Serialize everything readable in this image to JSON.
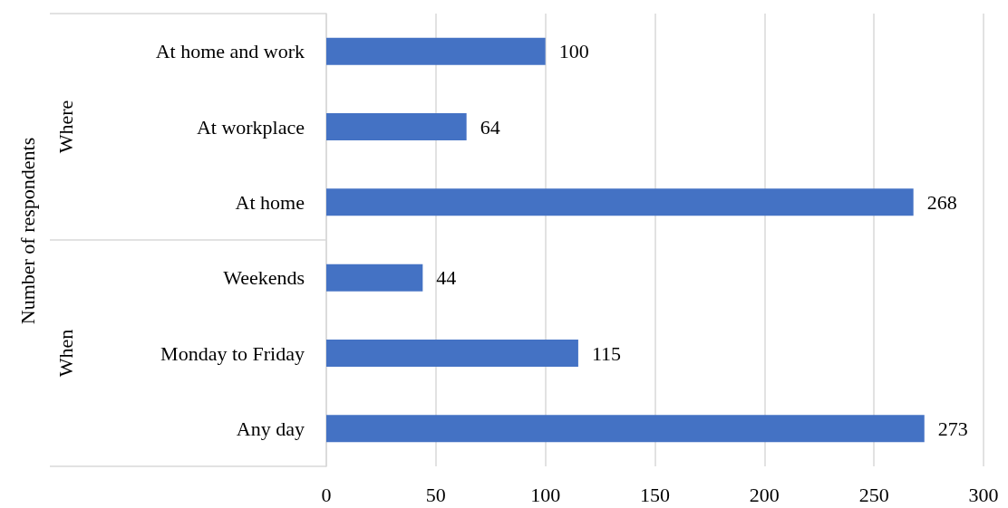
{
  "chart_data": {
    "type": "bar",
    "orientation": "horizontal",
    "categories": [
      "At home and work",
      "At workplace",
      "At home",
      "Weekends",
      "Monday to Friday",
      "Any day"
    ],
    "values": [
      100,
      64,
      268,
      44,
      115,
      273
    ],
    "color": "#4472c4",
    "xlim": [
      0,
      300
    ],
    "xticks": [
      0,
      50,
      100,
      150,
      200,
      250,
      300
    ],
    "grid": "x",
    "data_labels": true,
    "annotations": [
      "Number of respondents",
      "Where",
      "When"
    ]
  }
}
